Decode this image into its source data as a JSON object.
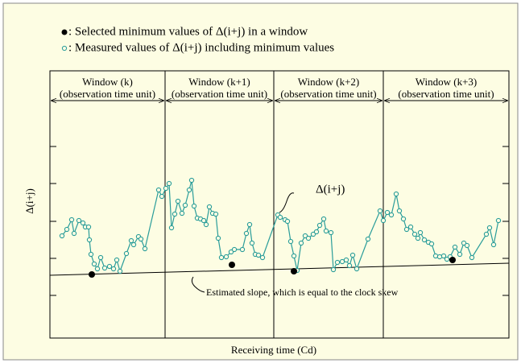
{
  "chart_data": {
    "type": "line",
    "y_label": "Δ(i+j)",
    "x_label": "Receiving time (Cd)",
    "xlim": [
      0,
      570
    ],
    "ylim": [
      0,
      332
    ],
    "series": [
      {
        "name": ": Measured values of Δ(i+j) including minimum values",
        "color": "#2a9d9a",
        "x": [
          15,
          21,
          27,
          30,
          36,
          41,
          44,
          48,
          49,
          51,
          55,
          59,
          63,
          68,
          74,
          79,
          83,
          87,
          95,
          101,
          104,
          110,
          113,
          118,
          135,
          139,
          144,
          148,
          151,
          155,
          159,
          164,
          168,
          173,
          176,
          179,
          183,
          187,
          191,
          194,
          198,
          202,
          206,
          209,
          213,
          219,
          225,
          229,
          239,
          244,
          248,
          251,
          255,
          259,
          264,
          283,
          286,
          292,
          295,
          299,
          303,
          307,
          312,
          317,
          321,
          327,
          331,
          335,
          340,
          343,
          349,
          352,
          357,
          363,
          368,
          372,
          376,
          381,
          395,
          410,
          414,
          419,
          424,
          430,
          434,
          439,
          443,
          448,
          453,
          457,
          460,
          465,
          470,
          474,
          479,
          484,
          489,
          493,
          497,
          503,
          509,
          514,
          518,
          524,
          542,
          546,
          551,
          557
        ],
        "values": [
          127,
          135,
          147,
          130,
          146,
          143,
          138,
          138,
          122,
          104,
          92,
          86,
          100,
          87,
          89,
          86,
          97,
          83,
          105,
          121,
          116,
          126,
          123,
          111,
          184,
          176,
          186,
          192,
          137,
          154,
          170,
          155,
          165,
          184,
          196,
          164,
          149,
          148,
          146,
          141,
          163,
          155,
          154,
          124,
          100,
          101,
          107,
          110,
          110,
          130,
          141,
          118,
          104,
          103,
          100,
          153,
          150,
          147,
          145,
          120,
          102,
          84,
          118,
          127,
          124,
          129,
          132,
          140,
          148,
          133,
          131,
          85,
          94,
          95,
          97,
          90,
          103,
          86,
          123,
          158,
          146,
          156,
          153,
          179,
          158,
          148,
          135,
          138,
          129,
          124,
          131,
          122,
          119,
          117,
          102,
          101,
          102,
          98,
          101,
          113,
          104,
          118,
          115,
          100,
          129,
          137,
          116,
          146
        ]
      },
      {
        "name": ": Selected minimum values of Δ(i+j) in a window",
        "color": "#000000",
        "x": [
          52,
          226,
          303,
          500
        ],
        "values": [
          79,
          91,
          83,
          97
        ]
      }
    ],
    "trend": {
      "label": "Estimated slope, which is equal to the clock skew",
      "x": [
        0,
        570
      ],
      "values": [
        78,
        93
      ]
    },
    "window_edges": [
      0,
      143,
      278,
      414,
      570
    ],
    "windows": [
      {
        "label": "Window (k)",
        "unit": "(observation time unit)"
      },
      {
        "label": "Window (k+1)",
        "unit": "(observation time unit)"
      },
      {
        "label": "Window (k+2)",
        "unit": "(observation time unit)"
      },
      {
        "label": "Window (k+3)",
        "unit": "(observation time unit)"
      }
    ],
    "annotation": "Δ(i+j)"
  }
}
